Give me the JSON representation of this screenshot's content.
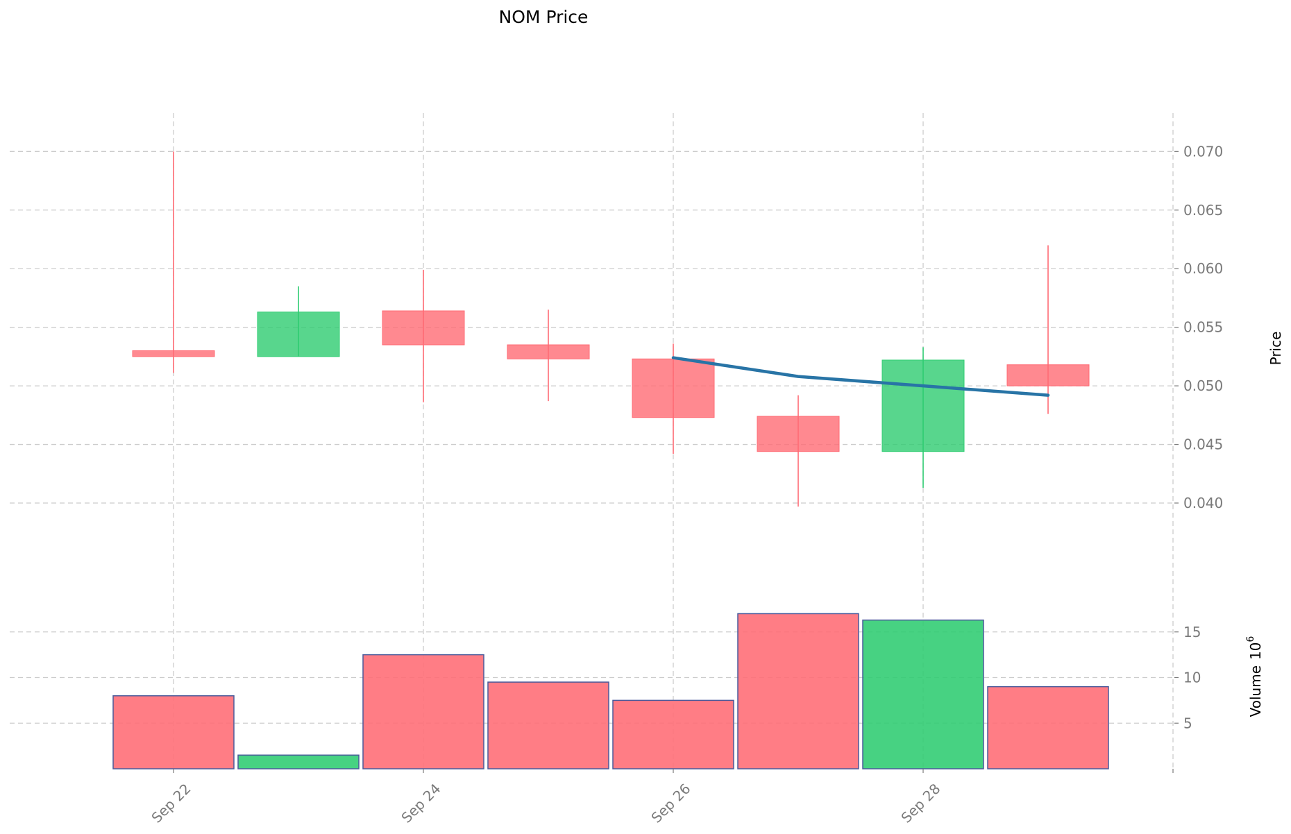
{
  "chart_data": {
    "type": "candlestick",
    "title": "NOM Price",
    "dates": [
      "Sep 22",
      "Sep 23",
      "Sep 24",
      "Sep 25",
      "Sep 26",
      "Sep 27",
      "Sep 28",
      "Sep 29"
    ],
    "ohlc": [
      {
        "open": 0.053,
        "high": 0.07,
        "low": 0.0511,
        "close": 0.0525
      },
      {
        "open": 0.0525,
        "high": 0.0585,
        "low": 0.0525,
        "close": 0.0563
      },
      {
        "open": 0.0564,
        "high": 0.0599,
        "low": 0.0486,
        "close": 0.0535
      },
      {
        "open": 0.0535,
        "high": 0.0565,
        "low": 0.0487,
        "close": 0.0523
      },
      {
        "open": 0.0523,
        "high": 0.0536,
        "low": 0.0442,
        "close": 0.0473
      },
      {
        "open": 0.0474,
        "high": 0.0492,
        "low": 0.0397,
        "close": 0.0444
      },
      {
        "open": 0.0444,
        "high": 0.0533,
        "low": 0.0413,
        "close": 0.0522
      },
      {
        "open": 0.0518,
        "high": 0.062,
        "low": 0.0476,
        "close": 0.05
      }
    ],
    "moving_average": [
      {
        "date": "Sep 26",
        "value": 0.0524
      },
      {
        "date": "Sep 27",
        "value": 0.0508
      },
      {
        "date": "Sep 28",
        "value": 0.05
      },
      {
        "date": "Sep 29",
        "value": 0.0492
      }
    ],
    "volume": [
      8.0,
      1.5,
      12.5,
      9.5,
      7.5,
      17.0,
      16.3,
      9.0
    ],
    "price_axis": {
      "label": "Price",
      "ticks": [
        "0.040",
        "0.045",
        "0.050",
        "0.055",
        "0.060",
        "0.065",
        "0.070"
      ],
      "range": [
        0.0355,
        0.0715
      ]
    },
    "volume_axis": {
      "label": "Volume",
      "exponent_label": "10",
      "exponent": "6",
      "ticks": [
        "5",
        "10",
        "15"
      ],
      "range": [
        0,
        20
      ]
    },
    "x_ticks": [
      "Sep 22",
      "Sep 24",
      "Sep 26",
      "Sep 28"
    ],
    "grid": true,
    "colors": {
      "up": "#2ecc71",
      "down": "#ff6b74",
      "moving_average": "#2874a6",
      "volume_edge": "#4a5a9a"
    }
  }
}
